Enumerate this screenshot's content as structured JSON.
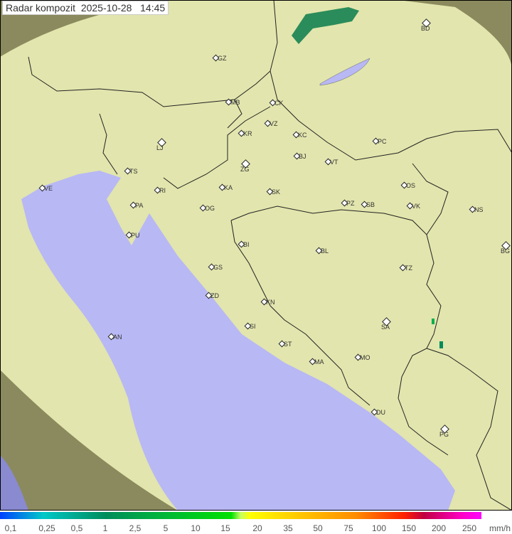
{
  "title": {
    "label": "Radar kompozit",
    "date": "2025-10-28",
    "time": "14:45"
  },
  "colors": {
    "land": "#e7e7a8",
    "sea": "#b8b8f5",
    "outside": "#8a8a5e",
    "coverage_overlay": "#f2f2d0"
  },
  "legend": {
    "labels": [
      "0,1",
      "0,25",
      "0,5",
      "1",
      "2,5",
      "5",
      "10",
      "15",
      "20",
      "35",
      "50",
      "75",
      "100",
      "150",
      "200",
      "250"
    ],
    "unit": "mm/h"
  },
  "cities": [
    {
      "code": "GZ"
    },
    {
      "code": "BD"
    },
    {
      "code": "MB"
    },
    {
      "code": "CK"
    },
    {
      "code": "VZ"
    },
    {
      "code": "KR"
    },
    {
      "code": "KC"
    },
    {
      "code": "LJ"
    },
    {
      "code": "BJ"
    },
    {
      "code": "PC"
    },
    {
      "code": "ZG"
    },
    {
      "code": "VT"
    },
    {
      "code": "TS"
    },
    {
      "code": "VE"
    },
    {
      "code": "RI"
    },
    {
      "code": "KA"
    },
    {
      "code": "SK"
    },
    {
      "code": "OS"
    },
    {
      "code": "PA"
    },
    {
      "code": "OG"
    },
    {
      "code": "PZ"
    },
    {
      "code": "SB"
    },
    {
      "code": "VK"
    },
    {
      "code": "NS"
    },
    {
      "code": "PU"
    },
    {
      "code": "BI"
    },
    {
      "code": "BL"
    },
    {
      "code": "BG"
    },
    {
      "code": "GS"
    },
    {
      "code": "TZ"
    },
    {
      "code": "ZD"
    },
    {
      "code": "KN"
    },
    {
      "code": "SA"
    },
    {
      "code": "AN"
    },
    {
      "code": "SI"
    },
    {
      "code": "ST"
    },
    {
      "code": "MO"
    },
    {
      "code": "MA"
    },
    {
      "code": "DU"
    },
    {
      "code": "PG"
    }
  ]
}
